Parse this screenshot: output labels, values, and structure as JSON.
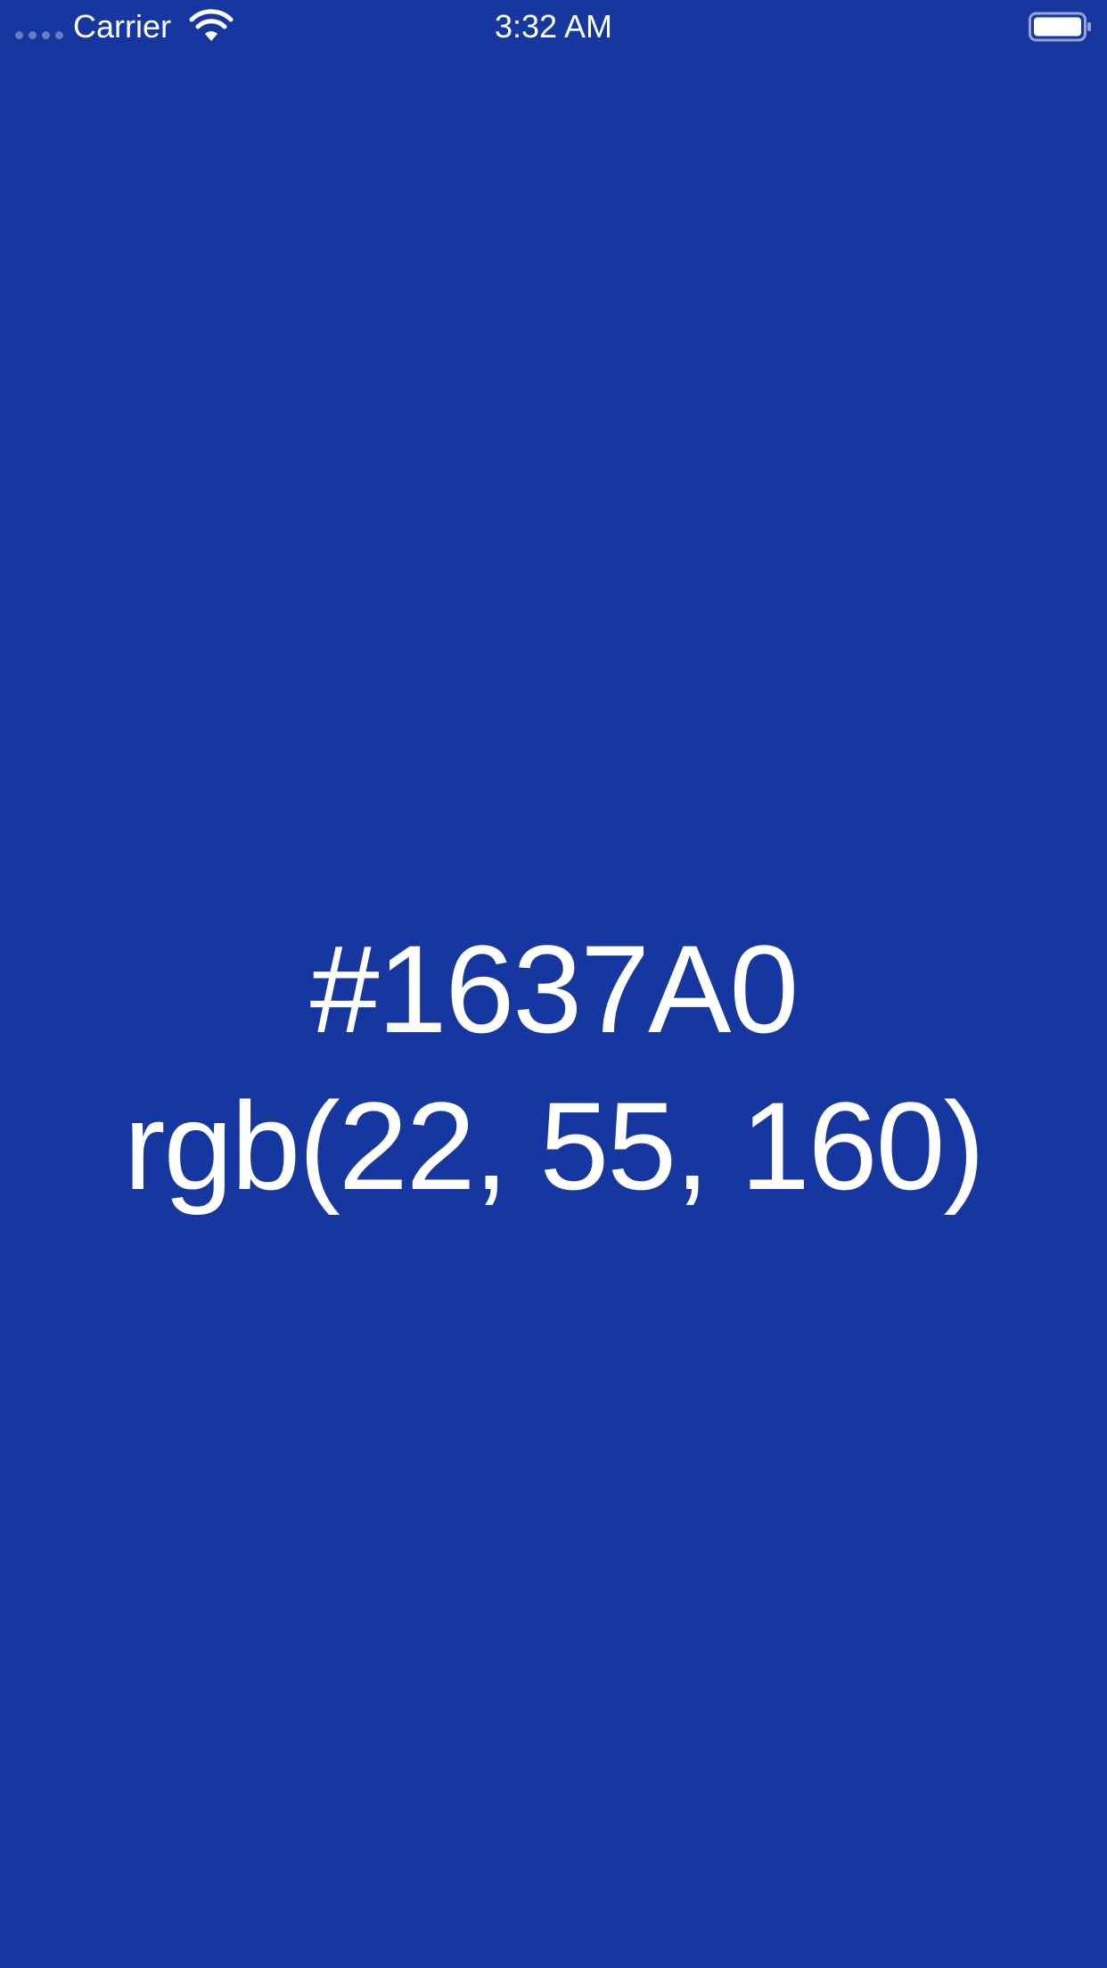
{
  "status_bar": {
    "carrier": "Carrier",
    "time": "3:32 AM",
    "icons": [
      "signal-dots-icon",
      "wifi-icon",
      "battery-icon"
    ]
  },
  "color": {
    "hex": "#1637A0",
    "rgb": "rgb(22, 55, 160)",
    "background": "#1637A0",
    "text_color": "#FFFFFF"
  }
}
